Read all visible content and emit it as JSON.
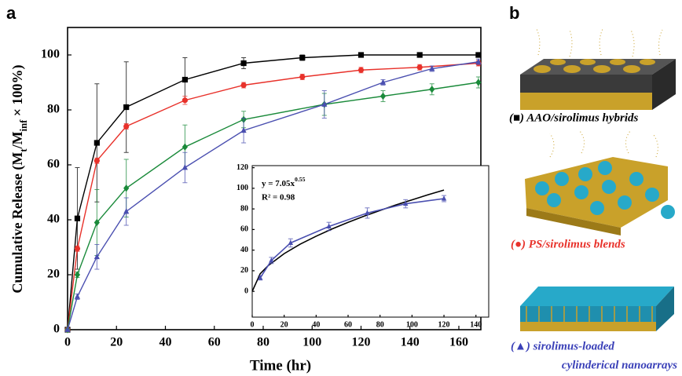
{
  "chart_data": [
    {
      "type": "line",
      "label": "a",
      "xlabel": "Time (hr)",
      "ylabel": [
        "Cumulative Release (M",
        "t",
        "/M",
        "inf",
        " × 100%)"
      ],
      "xlim": [
        0,
        169
      ],
      "ylim": [
        0,
        110
      ],
      "xticks": [
        0,
        20,
        40,
        60,
        80,
        100,
        120,
        140,
        160
      ],
      "yticks": [
        0,
        20,
        40,
        60,
        80,
        100
      ],
      "series": [
        {
          "color": "#000000",
          "marker": "square",
          "x": [
            0,
            4,
            12,
            24,
            48,
            72,
            96,
            120,
            144,
            168
          ],
          "values": [
            0,
            40.5,
            68,
            81,
            91,
            97,
            99,
            100,
            100,
            100
          ],
          "errors": [
            0,
            18.5,
            21.5,
            16.5,
            8,
            2,
            1,
            0.5,
            0.5,
            0.5
          ]
        },
        {
          "color": "#e8312a",
          "marker": "circle",
          "x": [
            0,
            4,
            12,
            24,
            48,
            72,
            96,
            120,
            144,
            168
          ],
          "values": [
            0,
            29.5,
            61.5,
            74,
            83.5,
            89,
            92,
            94.5,
            95.5,
            97
          ],
          "errors": [
            0,
            1,
            1,
            1,
            1.5,
            1,
            1,
            1,
            1,
            1
          ]
        },
        {
          "color": "#1a8a3a",
          "marker": "diamond",
          "x": [
            0,
            4,
            12,
            24,
            48,
            72,
            105,
            129,
            149,
            168
          ],
          "values": [
            0,
            20,
            39,
            51.5,
            66.5,
            76.5,
            82,
            85,
            87.5,
            90
          ],
          "errors": [
            0,
            1,
            12,
            10.5,
            8,
            3,
            4,
            2,
            2,
            2
          ]
        },
        {
          "color": "#4a4fb0",
          "marker": "triangle",
          "x": [
            0,
            4,
            12,
            24,
            48,
            72,
            105,
            129,
            149,
            168
          ],
          "values": [
            0,
            12,
            26.5,
            43,
            59,
            72.5,
            82,
            90,
            95,
            97.5
          ],
          "errors": [
            0,
            1,
            4.5,
            5,
            5.5,
            4.5,
            5,
            1,
            1,
            1
          ]
        }
      ]
    },
    {
      "type": "line",
      "equation": [
        "y = 7.05x",
        "0.55"
      ],
      "r2": "R² = 0.98",
      "xlim": [
        0,
        148
      ],
      "ylim": [
        -25,
        122
      ],
      "xticks": [
        0,
        20,
        40,
        60,
        80,
        100,
        120,
        140
      ],
      "yticks": [
        0,
        20,
        40,
        60,
        80,
        100,
        120
      ],
      "series": [
        {
          "color": "#000000",
          "marker": "none",
          "x": [
            0,
            5,
            10,
            20,
            30,
            40,
            50,
            60,
            70,
            80,
            90,
            100,
            110,
            120
          ],
          "values": [
            0,
            17.1,
            25,
            36.6,
            45.8,
            53.5,
            60.6,
            67,
            73,
            78.5,
            83.9,
            88.8,
            93.7,
            98.3
          ]
        },
        {
          "color": "#4a4fb0",
          "marker": "triangle",
          "x": [
            5,
            12,
            24,
            48,
            72,
            96,
            120
          ],
          "values": [
            13,
            30,
            47,
            63,
            76,
            85,
            90
          ],
          "errors": [
            2,
            3,
            4,
            4,
            5,
            4,
            3
          ]
        }
      ]
    }
  ],
  "panel_b": {
    "label": "b",
    "captions": [
      {
        "lines": [
          "(■) AAO/sirolimus hybrids"
        ],
        "color": "#000000"
      },
      {
        "lines": [
          "(●) PS/sirolimus blends"
        ],
        "color": "#e8312a"
      },
      {
        "lines": [
          "(▲)   sirolimus-loaded",
          "cylinderical nanoarrays"
        ],
        "color": "#3a40b8"
      }
    ]
  }
}
